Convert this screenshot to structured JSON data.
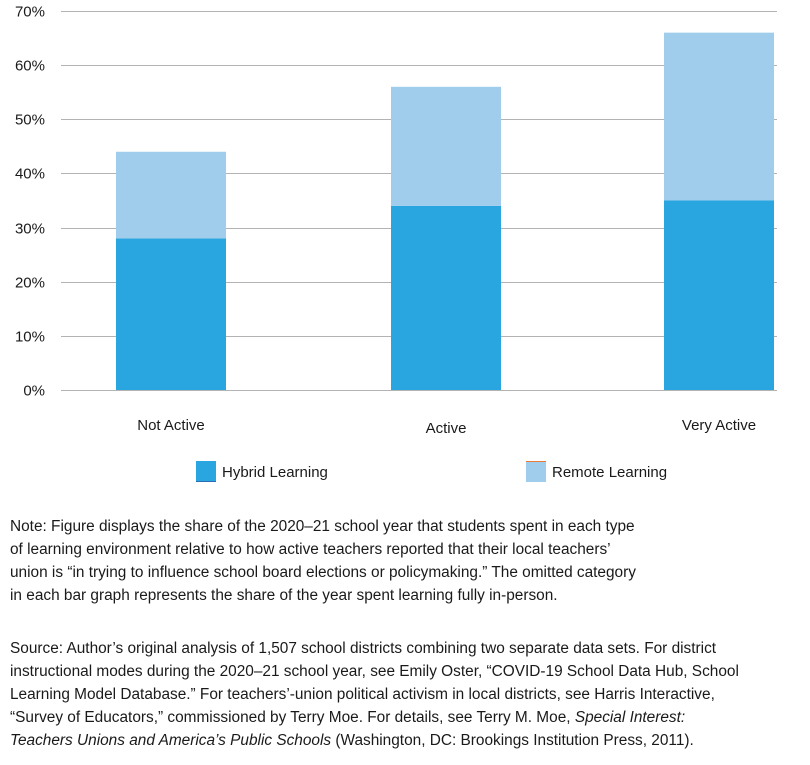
{
  "chart_data": {
    "type": "bar",
    "stacked": true,
    "title": "",
    "xlabel": "",
    "ylabel": "",
    "ylim": [
      0,
      70
    ],
    "yticks": [
      0,
      10,
      20,
      30,
      40,
      50,
      60,
      70
    ],
    "ytick_labels": [
      "0%",
      "10%",
      "20%",
      "30%",
      "40%",
      "50%",
      "60%",
      "70%"
    ],
    "grid": true,
    "categories": [
      "Not Active",
      "Active",
      "Very Active"
    ],
    "series": [
      {
        "name": "Hybrid Learning",
        "color": "#29a6e0",
        "values": [
          28,
          34,
          35
        ]
      },
      {
        "name": "Remote Learning",
        "color": "#a0cdec",
        "values": [
          16,
          22,
          31
        ]
      }
    ],
    "legend_position": "bottom"
  },
  "note": {
    "lines": [
      "Note: Figure displays the share of the 2020–21 school year that students spent in each type",
      "of learning environment relative to how active teachers reported that their local teachers’",
      "union is “in trying to influence school board elections or policymaking.” The omitted category",
      "in each bar graph represents the share of the year spent learning fully in-person."
    ]
  },
  "source": {
    "lines": [
      "Source: Author’s original analysis of 1,507 school districts combining two separate data sets. For district",
      "instructional modes during the 2020–21 school year, see Emily Oster, “COVID-19 School Data Hub, School",
      "Learning Model Database.” For teachers’-union political activism in local districts, see Harris Interactive,",
      "“Survey of Educators,” commissioned by Terry Moe. For details, see Terry M. Moe, "
    ],
    "line4_italic": "Special Interest:",
    "line5_italic": "Teachers Unions and America’s Public Schools",
    "line5_rest": " (Washington, DC: Brookings Institution Press, 2011)."
  }
}
